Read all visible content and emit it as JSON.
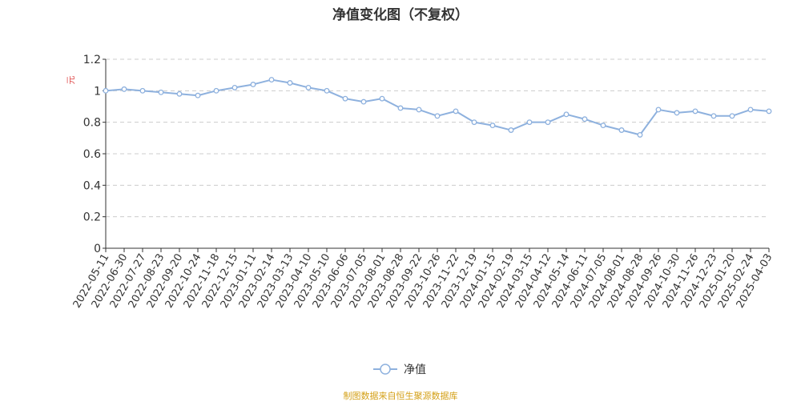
{
  "chart_data": {
    "type": "line",
    "title": "净值变化图（不复权）",
    "ylabel": "元",
    "xlabel": "",
    "ylim": [
      0,
      1.2
    ],
    "yticks": [
      0,
      0.2,
      0.4,
      0.6,
      0.8,
      1,
      1.2
    ],
    "x_tick_labels": [
      "2022-05-11",
      "2022-06-30",
      "2022-07-27",
      "2022-08-23",
      "2022-09-20",
      "2022-10-24",
      "2022-11-18",
      "2022-12-15",
      "2023-01-11",
      "2023-02-14",
      "2023-03-13",
      "2023-04-10",
      "2023-05-10",
      "2023-06-06",
      "2023-07-05",
      "2023-08-01",
      "2023-08-28",
      "2023-09-22",
      "2023-10-26",
      "2023-11-22",
      "2023-12-19",
      "2024-01-15",
      "2024-02-19",
      "2024-03-15",
      "2024-04-12",
      "2024-05-14",
      "2024-06-11",
      "2024-07-05",
      "2024-08-01",
      "2024-08-28",
      "2024-09-26",
      "2024-10-30",
      "2024-11-26",
      "2024-12-23",
      "2025-01-20",
      "2025-02-24",
      "2025-04-03"
    ],
    "grid": true,
    "legend_position": "bottom-center",
    "series": [
      {
        "name": "净值",
        "color": "#8eb1de",
        "values": [
          1.0,
          1.01,
          1.0,
          0.99,
          0.98,
          0.97,
          1.0,
          1.02,
          1.04,
          1.07,
          1.05,
          1.02,
          1.0,
          0.95,
          0.93,
          0.95,
          0.89,
          0.88,
          0.84,
          0.87,
          0.8,
          0.78,
          0.75,
          0.8,
          0.8,
          0.85,
          0.82,
          0.78,
          0.75,
          0.72,
          0.88,
          0.86,
          0.87,
          0.84,
          0.84,
          0.88,
          0.87
        ]
      }
    ]
  },
  "footer": {
    "source": "制图数据来自恒生聚源数据库"
  }
}
